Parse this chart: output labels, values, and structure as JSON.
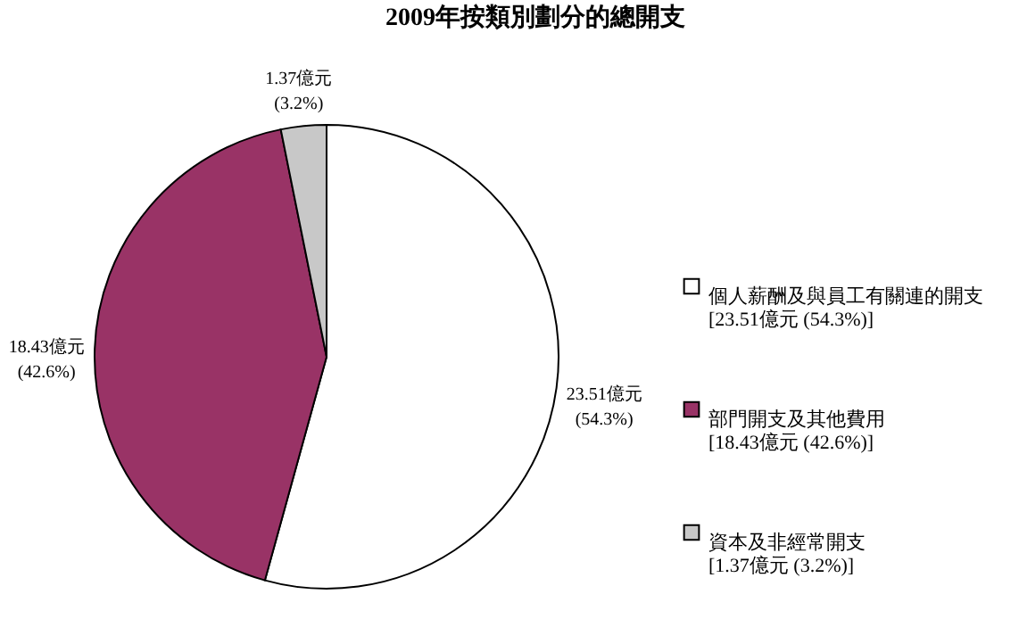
{
  "chart_data": {
    "type": "pie",
    "title": "2009年按類別劃分的總開支",
    "categories": [
      "個人薪酬及與員工有關連的開支 [23.51億元 (54.3%)]",
      "部門開支及其他費用 [18.43億元 (42.6%)]",
      "資本及非經常開支 [1.37億元 (3.2%)]"
    ],
    "values": [
      23.51,
      18.43,
      1.37
    ],
    "colors": [
      "#ffffff",
      "#993366",
      "#c8c8c8"
    ],
    "value_labels": [
      "23.51億元 (54.3%)",
      "18.43億元 (42.6%)",
      "1.37億元 (3.2%)"
    ],
    "legend": "right"
  }
}
